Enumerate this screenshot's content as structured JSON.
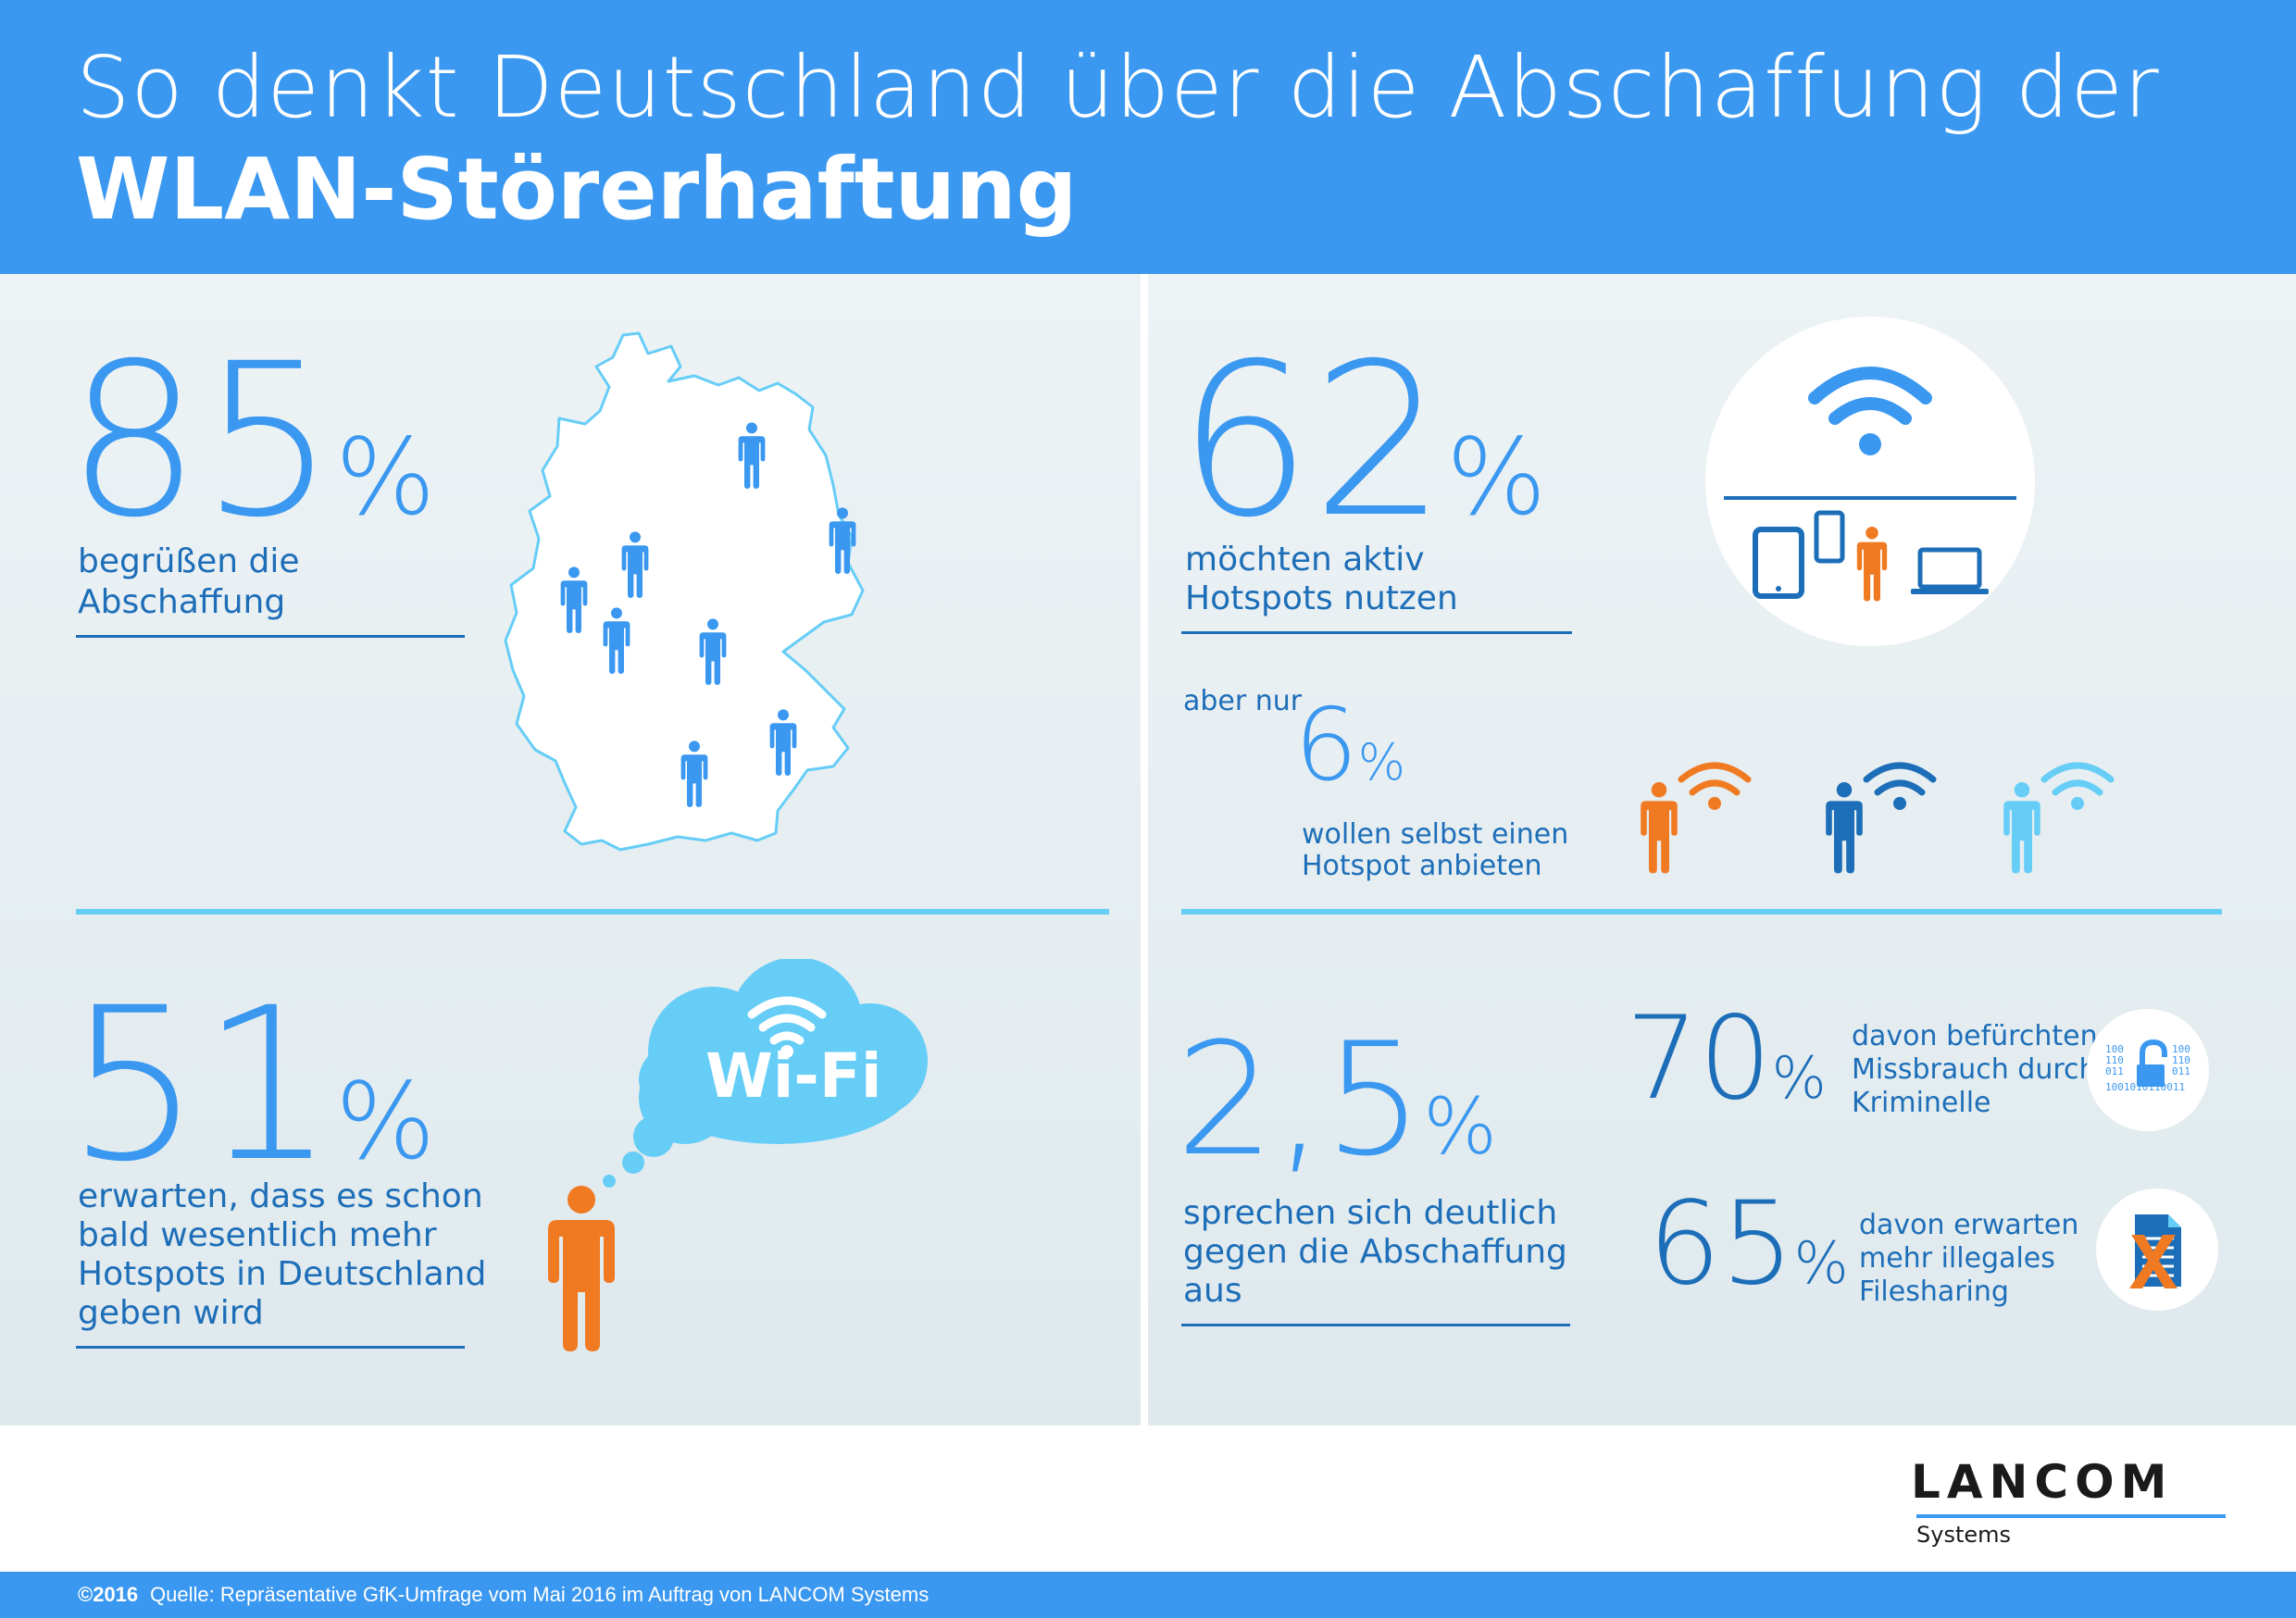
{
  "header": {
    "title_line1": "So denkt Deutschland über die Abschaffung der",
    "title_line2": "WLAN-Störerhaftung"
  },
  "stats": {
    "approve": {
      "value": "85",
      "unit": "%",
      "label_line1": "begrüßen die",
      "label_line2": "Abschaffung"
    },
    "use_hotspots": {
      "value": "62",
      "unit": "%",
      "label_line1": "möchten aktiv",
      "label_line2": "Hotspots nutzen"
    },
    "offer_hotspot": {
      "prefix": "aber nur",
      "value": "6",
      "unit": "%",
      "label_line1": "wollen selbst einen",
      "label_line2": "Hotspot anbieten"
    },
    "more_hotspots": {
      "value": "51",
      "unit": "%",
      "label_line1": "erwarten, dass es schon",
      "label_line2": "bald wesentlich mehr",
      "label_line3": "Hotspots in Deutschland",
      "label_line4": "geben wird"
    },
    "against": {
      "value": "2,5",
      "unit": "%",
      "label_line1": "sprechen sich deutlich",
      "label_line2": "gegen die Abschaffung",
      "label_line3": "aus"
    },
    "fear_misuse": {
      "value": "70",
      "unit": "%",
      "label_line1": "davon befürchten",
      "label_line2": "Missbrauch durch",
      "label_line3": "Kriminelle"
    },
    "filesharing": {
      "value": "65",
      "unit": "%",
      "label_line1": "davon erwarten",
      "label_line2": "mehr illegales",
      "label_line3": "Filesharing"
    }
  },
  "wifi_bubble": {
    "label": "Wi-Fi"
  },
  "icons": {
    "lock_binary": [
      "100",
      "110",
      "011",
      "1001010110011"
    ]
  },
  "colors": {
    "primary_blue": "#3b98f0",
    "dark_blue": "#1d6eb8",
    "light_blue": "#66cdf7",
    "orange": "#f07a22"
  },
  "brand": {
    "name": "LANCOM",
    "sub": "Systems"
  },
  "footer": {
    "copyright": "©2016",
    "source": "Quelle: Repräsentative GfK-Umfrage vom Mai 2016 im Auftrag von LANCOM Systems"
  }
}
